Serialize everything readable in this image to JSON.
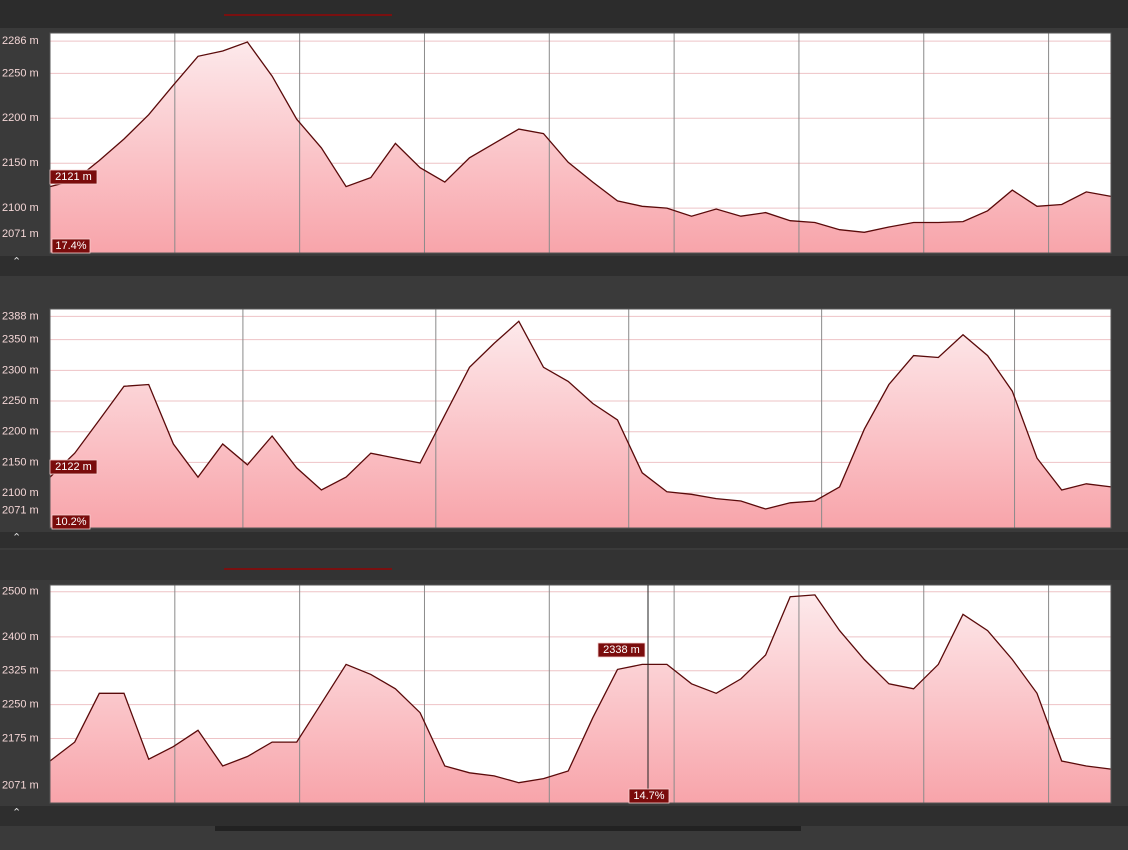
{
  "chart_data": [
    {
      "type": "area",
      "color": "#5a0a0a",
      "ylim": [
        2050,
        2295
      ],
      "yticks": [
        {
          "value": 2286,
          "label": "2286 m"
        },
        {
          "value": 2250,
          "label": "2250 m"
        },
        {
          "value": 2200,
          "label": "2200 m"
        },
        {
          "value": 2150,
          "label": "2150 m"
        },
        {
          "value": 2100,
          "label": "2100 m"
        },
        {
          "value": 2071,
          "label": "2071 m"
        }
      ],
      "values": [
        2124,
        2131,
        2153,
        2177,
        2204,
        2237,
        2269,
        2275,
        2285,
        2247,
        2199,
        2167,
        2124,
        2134,
        2172,
        2145,
        2129,
        2156,
        2172,
        2188,
        2183,
        2151,
        2129,
        2108,
        2102,
        2100,
        2091,
        2099,
        2091,
        2095,
        2086,
        2084,
        2076,
        2073,
        2079,
        2084,
        2084,
        2085,
        2097,
        2120,
        2102,
        2104,
        2118,
        2113
      ],
      "annotations": [
        "2121 m",
        "17.4%"
      ]
    },
    {
      "type": "area",
      "color": "#5a0a0a",
      "ylim": [
        2043,
        2400
      ],
      "yticks": [
        {
          "value": 2388,
          "label": "2388 m"
        },
        {
          "value": 2350,
          "label": "2350 m"
        },
        {
          "value": 2300,
          "label": "2300 m"
        },
        {
          "value": 2250,
          "label": "2250 m"
        },
        {
          "value": 2200,
          "label": "2200 m"
        },
        {
          "value": 2150,
          "label": "2150 m"
        },
        {
          "value": 2100,
          "label": "2100 m"
        },
        {
          "value": 2071,
          "label": "2071 m"
        }
      ],
      "values": [
        2126,
        2165,
        2219,
        2274,
        2277,
        2180,
        2126,
        2180,
        2146,
        2193,
        2141,
        2105,
        2126,
        2165,
        2157,
        2149,
        2227,
        2305,
        2344,
        2380,
        2305,
        2282,
        2246,
        2219,
        2133,
        2102,
        2098,
        2091,
        2087,
        2074,
        2084,
        2087,
        2110,
        2204,
        2277,
        2324,
        2321,
        2358,
        2324,
        2266,
        2157,
        2105,
        2115,
        2110
      ],
      "annotations": [
        "2122 m",
        "10.2%"
      ]
    },
    {
      "type": "area",
      "color": "#5a0a0a",
      "ylim": [
        2032,
        2515
      ],
      "yticks": [
        {
          "value": 2500,
          "label": "2500 m"
        },
        {
          "value": 2400,
          "label": "2400 m"
        },
        {
          "value": 2325,
          "label": "2325 m"
        },
        {
          "value": 2250,
          "label": "2250 m"
        },
        {
          "value": 2175,
          "label": "2175 m"
        },
        {
          "value": 2071,
          "label": "2071 m"
        }
      ],
      "values": [
        2125,
        2167,
        2275,
        2275,
        2129,
        2157,
        2193,
        2114,
        2135,
        2167,
        2167,
        2253,
        2339,
        2317,
        2285,
        2232,
        2114,
        2099,
        2092,
        2077,
        2086,
        2103,
        2221,
        2328,
        2339,
        2339,
        2296,
        2275,
        2307,
        2360,
        2489,
        2493,
        2414,
        2350,
        2296,
        2285,
        2339,
        2450,
        2414,
        2350,
        2275,
        2125,
        2114,
        2107
      ],
      "annotations": [
        "2338 m",
        "14.7%"
      ]
    }
  ]
}
